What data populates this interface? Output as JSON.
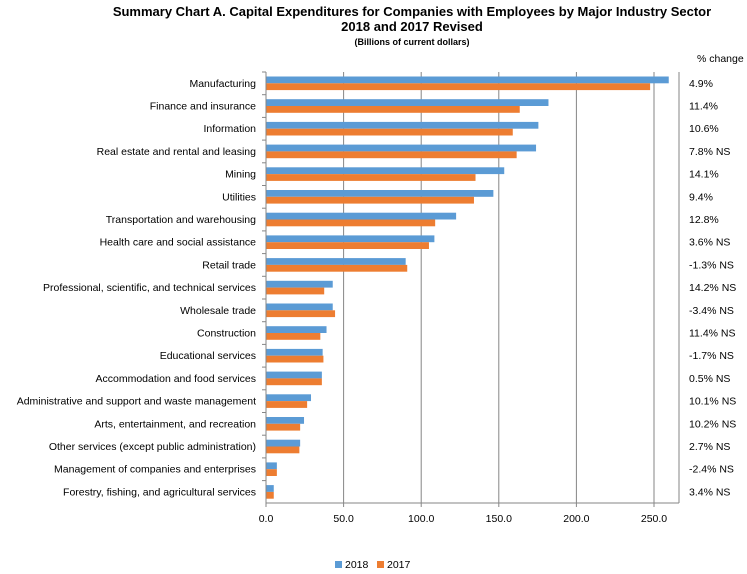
{
  "chart_data": {
    "type": "bar",
    "orientation": "horizontal",
    "title": "Summary Chart A. Capital Expenditures for Companies with Employees by Major Industry Sector",
    "title_line2": "2018 and 2017 Revised",
    "subtitle": "(Billions of current dollars)",
    "pct_header": "% change",
    "categories": [
      "Manufacturing",
      "Finance and insurance",
      "Information",
      "Real estate and rental and leasing",
      "Mining",
      "Utilities",
      "Transportation and warehousing",
      "Health care and social assistance",
      "Retail trade",
      "Professional, scientific, and technical services",
      "Wholesale trade",
      "Construction",
      "Educational services",
      "Accommodation and food services",
      "Administrative and support and waste management",
      "Arts, entertainment, and recreation",
      "Other services (except public administration)",
      "Management of companies and enterprises",
      "Forestry, fishing, and agricultural services"
    ],
    "series": [
      {
        "name": "2018",
        "color": "#5B9BD5",
        "values": [
          259.5,
          182.0,
          175.5,
          174.0,
          153.5,
          146.5,
          122.5,
          108.5,
          90.0,
          43.0,
          43.0,
          39.0,
          36.5,
          36.0,
          29.0,
          24.5,
          22.0,
          7.0,
          5.0
        ]
      },
      {
        "name": "2017",
        "color": "#ED7D31",
        "values": [
          247.5,
          163.5,
          159.0,
          161.5,
          135.0,
          134.0,
          109.0,
          105.0,
          91.0,
          37.5,
          44.5,
          35.0,
          37.0,
          36.0,
          26.5,
          22.0,
          21.5,
          7.0,
          5.0
        ]
      }
    ],
    "pct_change": [
      "4.9%",
      "11.4%",
      "10.6%",
      "7.8%  NS",
      "14.1%",
      "9.4%",
      "12.8%",
      "3.6%  NS",
      "-1.3%  NS",
      "14.2%  NS",
      "-3.4%  NS",
      "11.4%  NS",
      "-1.7%  NS",
      "0.5%  NS",
      "10.1%  NS",
      "10.2%  NS",
      "2.7%  NS",
      "-2.4%  NS",
      "3.4%  NS"
    ],
    "xlim": [
      0,
      260
    ],
    "ticks": [
      0,
      50,
      100,
      150,
      200,
      250
    ],
    "tick_labels": [
      "0.0",
      "50.0",
      "100.0",
      "150.0",
      "200.0",
      "250.0"
    ],
    "grid": "vertical",
    "legend_position": "bottom"
  }
}
